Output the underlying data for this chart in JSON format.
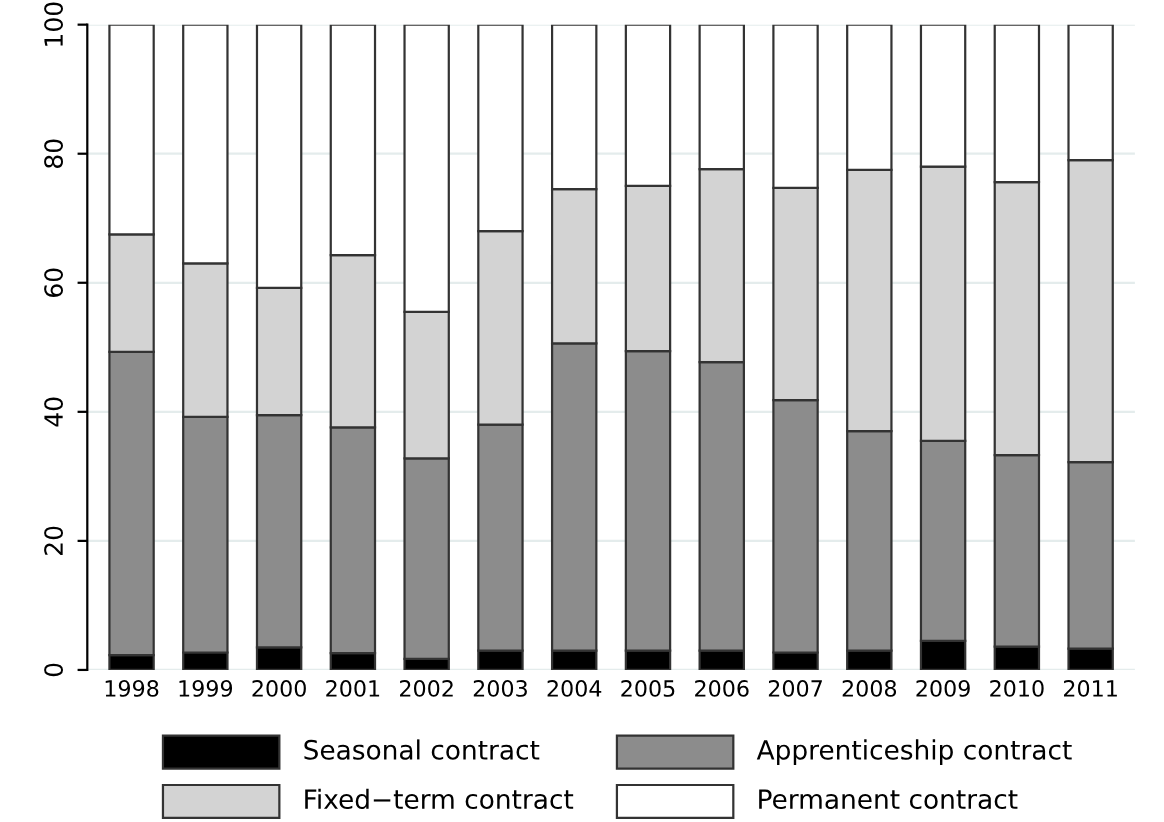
{
  "chart_data": {
    "type": "bar",
    "stacked": true,
    "categories": [
      "1998",
      "1999",
      "2000",
      "2001",
      "2002",
      "2003",
      "2004",
      "2005",
      "2006",
      "2007",
      "2008",
      "2009",
      "2010",
      "2011"
    ],
    "series": [
      {
        "name": "Seasonal contract",
        "color": "#000000",
        "values": [
          2.3,
          2.7,
          3.5,
          2.6,
          1.7,
          3.0,
          3.0,
          3.0,
          3.0,
          2.7,
          3.0,
          4.5,
          3.6,
          3.3
        ]
      },
      {
        "name": "Apprenticeship contract",
        "color": "#8c8c8c",
        "values": [
          47.0,
          36.5,
          36.0,
          35.0,
          31.1,
          35.0,
          47.6,
          46.4,
          44.7,
          39.1,
          34.0,
          31.0,
          29.7,
          28.9
        ]
      },
      {
        "name": "Fixed−term contract",
        "color": "#d3d3d3",
        "values": [
          18.2,
          23.8,
          19.7,
          26.7,
          22.7,
          30.0,
          23.9,
          25.6,
          29.9,
          32.9,
          40.5,
          42.5,
          42.3,
          46.8
        ]
      },
      {
        "name": "Permanent contract",
        "color": "#ffffff",
        "values": [
          32.5,
          37.0,
          40.8,
          35.7,
          44.5,
          32.0,
          25.5,
          25.0,
          22.4,
          25.3,
          22.5,
          22.0,
          24.4,
          21.0
        ]
      }
    ],
    "ylim": [
      0,
      100
    ],
    "yticks": [
      0,
      20,
      40,
      60,
      80,
      100
    ],
    "grid": "y",
    "legend": "bottom"
  }
}
